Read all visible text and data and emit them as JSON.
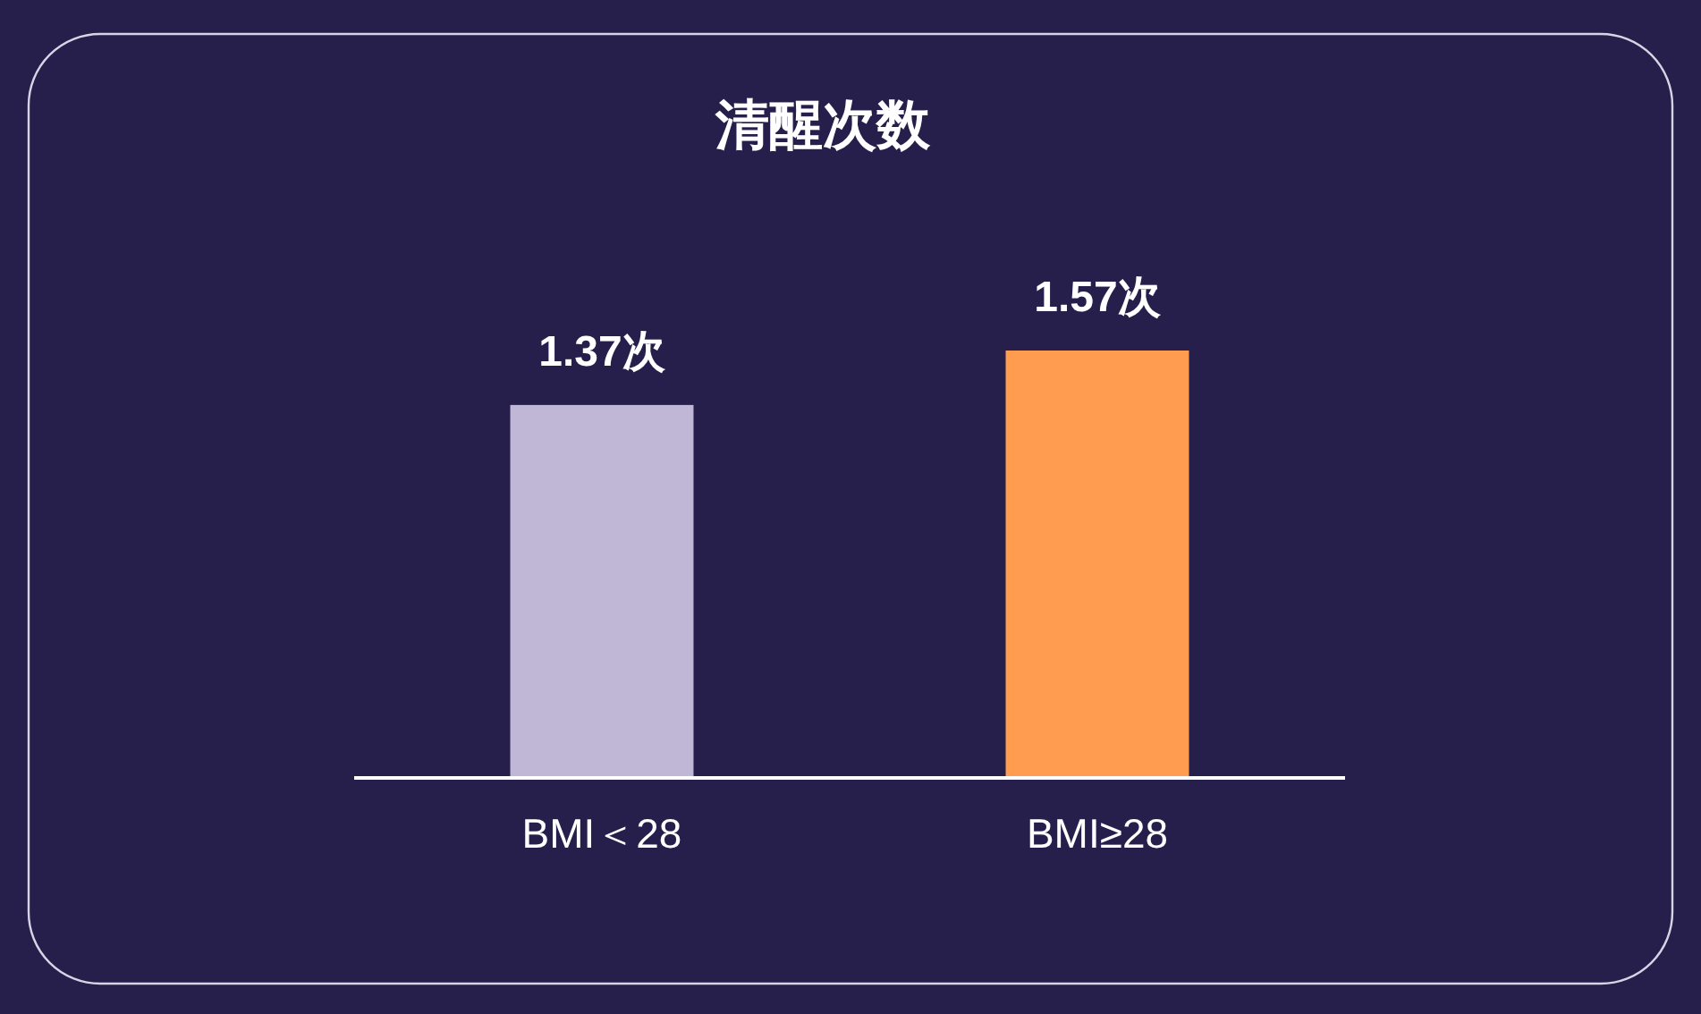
{
  "chart_data": {
    "type": "bar",
    "title": "清醒次数",
    "categories": [
      "BMI＜28",
      "BMI≥28"
    ],
    "values": [
      1.37,
      1.57
    ],
    "colors": [
      "#c0b6d6",
      "#ff9c4f"
    ],
    "value_labels": [
      "1.37次",
      "1.57次"
    ]
  }
}
